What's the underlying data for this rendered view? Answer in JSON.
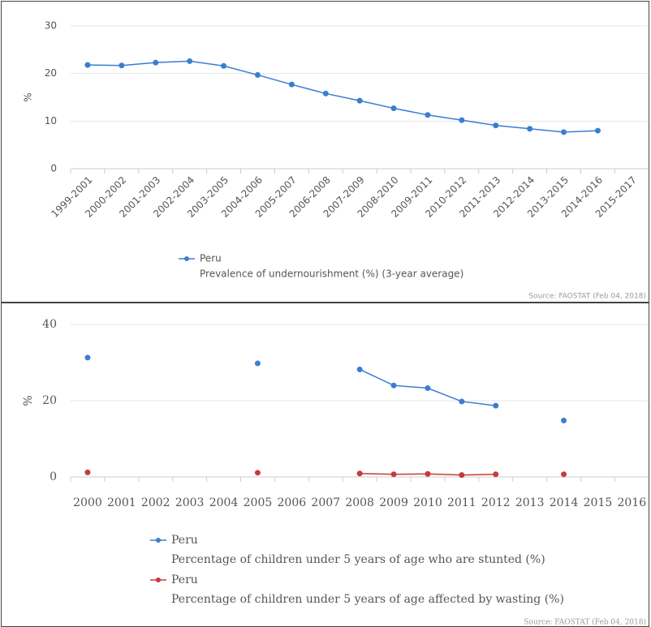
{
  "chart_data": [
    {
      "type": "line",
      "ylabel": "%",
      "categories": [
        "1999-2001",
        "2000-2002",
        "2001-2003",
        "2002-2004",
        "2003-2005",
        "2004-2006",
        "2005-2007",
        "2006-2008",
        "2007-2009",
        "2008-2010",
        "2009-2011",
        "2010-2012",
        "2011-2013",
        "2012-2014",
        "2013-2015",
        "2014-2016",
        "2015-2017"
      ],
      "series": [
        {
          "name": "Peru",
          "description": "Prevalence of undernourishment (%) (3-year average)",
          "color": "#3a7ed0",
          "values": [
            21.8,
            21.7,
            22.3,
            22.6,
            21.6,
            19.7,
            17.7,
            15.8,
            14.3,
            12.7,
            11.3,
            10.2,
            9.1,
            8.4,
            7.7,
            8.0,
            null
          ]
        }
      ],
      "ylim": [
        0,
        30
      ],
      "yticks": [
        0,
        10,
        20,
        30
      ],
      "grid": true,
      "source": "Source: FAOSTAT (Feb 04, 2018)"
    },
    {
      "type": "line",
      "ylabel": "%",
      "categories": [
        "2000",
        "2001",
        "2002",
        "2003",
        "2004",
        "2005",
        "2006",
        "2007",
        "2008",
        "2009",
        "2010",
        "2011",
        "2012",
        "2013",
        "2014",
        "2015",
        "2016"
      ],
      "series": [
        {
          "name": "Peru",
          "description": "Percentage of children under 5 years of age who are stunted (%)",
          "color": "#3a7ed0",
          "values": [
            31.3,
            null,
            null,
            null,
            null,
            29.8,
            null,
            null,
            28.2,
            24.0,
            23.3,
            19.8,
            18.7,
            null,
            14.8,
            null,
            null
          ]
        },
        {
          "name": "Peru",
          "description": "Percentage of children under 5 years of age affected by wasting (%)",
          "color": "#c83a3a",
          "values": [
            1.2,
            null,
            null,
            null,
            null,
            1.1,
            null,
            null,
            0.9,
            0.7,
            0.8,
            0.5,
            0.7,
            null,
            0.7,
            null,
            null
          ]
        }
      ],
      "ylim": [
        0,
        40
      ],
      "yticks": [
        0,
        20,
        40
      ],
      "grid": true,
      "source": "Source: FAOSTAT (Feb 04, 2018)"
    }
  ]
}
